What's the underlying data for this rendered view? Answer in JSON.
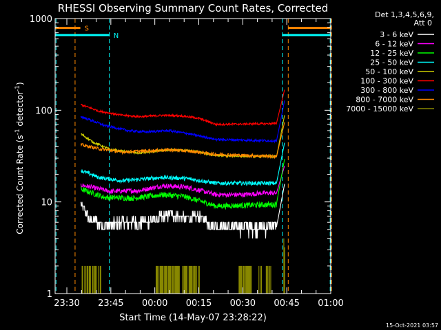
{
  "chart_data": {
    "type": "line",
    "title": "RHESSI Observing Summary Count Rates, Corrected",
    "xlabel": "Start Time (14-May-07 23:28:22)",
    "ylabel_main": "Corrected Count Rate (s",
    "ylabel_sup1": "-1",
    "ylabel_mid": " detector",
    "ylabel_sup2": "-1",
    "ylabel_end": ")",
    "y_scale": "log",
    "ylim": [
      1,
      1000
    ],
    "xlim_minutes": [
      -2,
      92
    ],
    "x_ticks": [
      {
        "m": 2,
        "label": "23:30"
      },
      {
        "m": 17,
        "label": "23:45"
      },
      {
        "m": 32,
        "label": "00:00"
      },
      {
        "m": 47,
        "label": "00:15"
      },
      {
        "m": 62,
        "label": "00:30"
      },
      {
        "m": 77,
        "label": "00:45"
      },
      {
        "m": 92,
        "label": "01:00"
      }
    ],
    "y_ticks": [
      {
        "v": 1,
        "label": "1"
      },
      {
        "v": 10,
        "label": "10"
      },
      {
        "v": 100,
        "label": "100"
      },
      {
        "v": 1000,
        "label": "1000"
      }
    ],
    "legend_header": [
      "Det 1,3,4,5,6,9,",
      "Att 0"
    ],
    "series": [
      {
        "name": "3 - 6 keV",
        "color": "#ffffff",
        "start": 9.5,
        "plateau": [
          [
            0,
            9.3
          ],
          [
            3,
            6.5
          ],
          [
            8,
            5.4
          ],
          [
            14,
            6
          ],
          [
            22,
            6
          ],
          [
            31,
            7.3
          ],
          [
            36,
            6.6
          ],
          [
            40,
            7
          ],
          [
            46,
            5.4
          ],
          [
            65,
            5.3
          ],
          [
            69,
            5.8
          ],
          [
            71,
            5.3
          ]
        ],
        "noise": 0.9,
        "end": 16
      },
      {
        "name": "6 - 12 keV",
        "color": "#ff00ff",
        "start": 15.5,
        "plateau": [
          [
            0,
            15.3
          ],
          [
            10,
            13
          ],
          [
            20,
            13.3
          ],
          [
            28,
            15
          ],
          [
            36,
            14.5
          ],
          [
            46,
            12
          ],
          [
            56,
            12
          ],
          [
            62,
            12.5
          ],
          [
            71,
            12.5
          ]
        ],
        "noise": 0.06,
        "end": 25
      },
      {
        "name": "12 - 25 keV",
        "color": "#00ff00",
        "start": 13.8,
        "plateau": [
          [
            0,
            13.8
          ],
          [
            8,
            11.2
          ],
          [
            18,
            11
          ],
          [
            28,
            12
          ],
          [
            35,
            11.5
          ],
          [
            46,
            9
          ],
          [
            62,
            9.3
          ],
          [
            71,
            9.5
          ]
        ],
        "noise": 0.07,
        "end": 30
      },
      {
        "name": "25 - 50 keV",
        "color": "#00ffff",
        "start": 22,
        "plateau": [
          [
            0,
            22
          ],
          [
            6,
            18.5
          ],
          [
            14,
            17
          ],
          [
            28,
            18.5
          ],
          [
            36,
            18
          ],
          [
            46,
            16
          ],
          [
            71,
            16
          ]
        ],
        "noise": 0.05,
        "end": 45
      },
      {
        "name": "50 - 100 keV",
        "color": "#cccc00",
        "start": 55,
        "plateau": [
          [
            0,
            55
          ],
          [
            4,
            45
          ],
          [
            10,
            37
          ],
          [
            20,
            34
          ],
          [
            30,
            37
          ],
          [
            38,
            36
          ],
          [
            46,
            32
          ],
          [
            71,
            31
          ]
        ],
        "noise": 0.03,
        "end": 90
      },
      {
        "name": "100 - 300 keV",
        "color": "#ff0000",
        "start": 118,
        "plateau": [
          [
            0,
            115
          ],
          [
            6,
            98
          ],
          [
            14,
            88
          ],
          [
            20,
            85
          ],
          [
            28,
            88
          ],
          [
            34,
            87
          ],
          [
            40,
            82
          ],
          [
            46,
            70
          ],
          [
            71,
            72
          ]
        ],
        "noise": 0.025,
        "end": 170
      },
      {
        "name": "300 - 800 keV",
        "color": "#0000ff",
        "start": 88,
        "plateau": [
          [
            0,
            85
          ],
          [
            8,
            68
          ],
          [
            16,
            60
          ],
          [
            22,
            58
          ],
          [
            30,
            60
          ],
          [
            36,
            56
          ],
          [
            46,
            48
          ],
          [
            71,
            46
          ]
        ],
        "noise": 0.03,
        "end": 130
      },
      {
        "name": "800 - 7000 keV",
        "color": "#ff8800",
        "start": 43,
        "plateau": [
          [
            0,
            42
          ],
          [
            6,
            38
          ],
          [
            14,
            35
          ],
          [
            30,
            37
          ],
          [
            36,
            36
          ],
          [
            46,
            33
          ],
          [
            71,
            31
          ]
        ],
        "noise": 0.04,
        "end": 75
      },
      {
        "name": "7000 - 15000 keV",
        "color": "#888800",
        "start": 1,
        "plateau": [],
        "noise": 0,
        "end": 4
      }
    ],
    "series_start_min": 6.8,
    "series_rise_min": 73.5,
    "series_end_min": 76.3,
    "flags": [
      {
        "label": "S",
        "color": "#ff8800",
        "level": 790,
        "segments": [
          [
            -2,
            6.6
          ],
          [
            77.5,
            92
          ]
        ]
      },
      {
        "label": "N",
        "color": "#00ffff",
        "level": 660,
        "segments": [
          [
            -2,
            16.5
          ],
          [
            75.5,
            92
          ]
        ]
      }
    ],
    "vlines": [
      {
        "m": -1.7,
        "color": "#00ffff"
      },
      {
        "m": 4.8,
        "color": "#ff8800"
      },
      {
        "m": 16.5,
        "color": "#00ffff"
      },
      {
        "m": 75.5,
        "color": "#00ffff"
      },
      {
        "m": 77.5,
        "color": "#ff8800"
      },
      {
        "m": 91.8,
        "color": "#00ffff"
      },
      {
        "m": 92.3,
        "color": "#ff8800"
      }
    ],
    "hxr_bursts": [
      [
        7.2,
        13.8
      ],
      [
        32,
        47.5
      ],
      [
        60.5,
        65
      ],
      [
        67.5,
        68.5
      ],
      [
        70,
        71.8
      ]
    ],
    "grid": false,
    "legend_position": "top-right"
  },
  "timestamp": "15-Oct-2021 03:57"
}
